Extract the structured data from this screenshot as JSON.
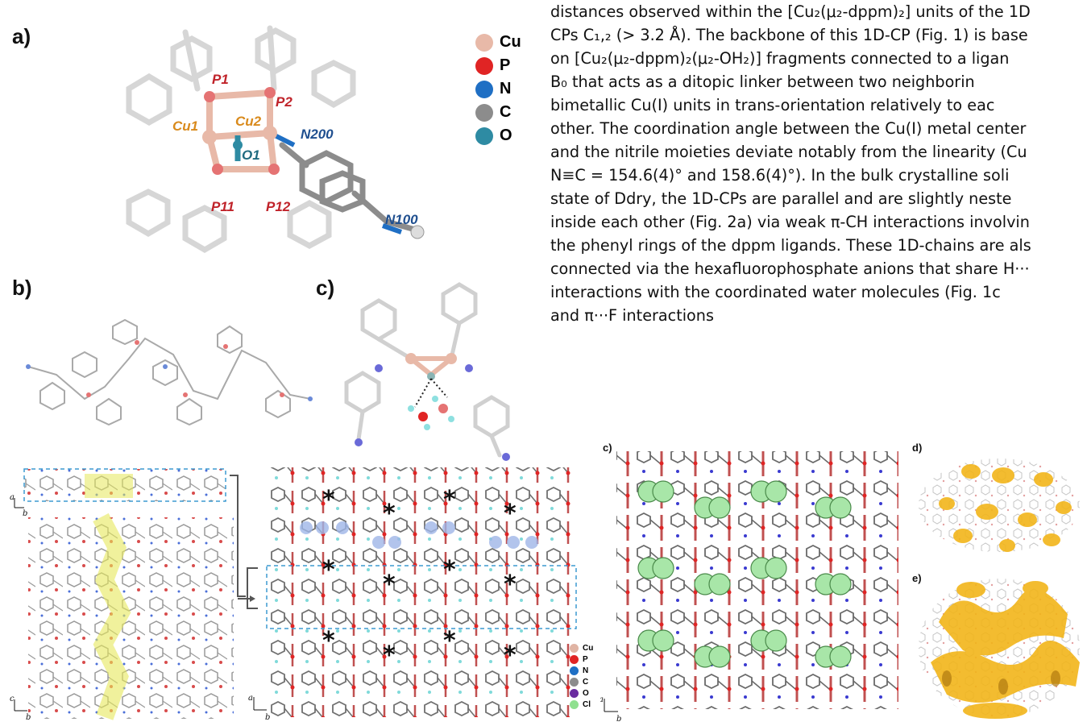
{
  "panel_labels": {
    "top_a": "a)",
    "top_b": "b)",
    "top_c": "c)",
    "bottom_c": "c)",
    "bottom_d": "d)",
    "bottom_e": "e)"
  },
  "paragraph_lines": [
    "distances observed within the [Cu₂(μ₂-dppm)₂] units of the 1D",
    "CPs C₁,₂ (> 3.2 Å). The backbone of this 1D-CP (Fig. 1) is base",
    "on [Cu₂(μ₂-dppm)₂(μ₂-OH₂)] fragments connected to a ligan",
    "B₀ that acts as a ditopic linker between two neighborin",
    "bimetallic Cu(I) units in trans-orientation relatively to eac",
    "other. The coordination angle between the Cu(I) metal center",
    "and the nitrile moieties deviate notably from the linearity (Cu",
    "N≡C = 154.6(4)° and 158.6(4)°). In the bulk crystalline soli",
    "state of Ddry, the 1D-CPs are parallel and are slightly neste",
    "inside each other (Fig. 2a) via weak π-CH interactions involvin",
    "the phenyl rings of the dppm ligands. These 1D-chains are als",
    "connected via the hexafluorophosphate anions that share H···",
    "interactions with the coordinated water molecules (Fig. 1c",
    "and π···F interactions"
  ],
  "atom_labels": {
    "p1": "P1",
    "p2": "P2",
    "cu1": "Cu1",
    "cu2": "Cu2",
    "o1": "O1",
    "n200": "N200",
    "p11": "P11",
    "p12": "P12",
    "n100": "N100"
  },
  "legend_top": [
    {
      "label": "Cu",
      "color": "#e8b9a8"
    },
    {
      "label": "P",
      "color": "#e02424"
    },
    {
      "label": "N",
      "color": "#1f6fc4"
    },
    {
      "label": "C",
      "color": "#8c8c8c"
    },
    {
      "label": "O",
      "color": "#2e8ba3"
    }
  ],
  "legend_bottom": [
    {
      "label": "Cu",
      "color": "#e0b4a4"
    },
    {
      "label": "P",
      "color": "#e02424"
    },
    {
      "label": "N",
      "color": "#1f6fc4"
    },
    {
      "label": "C",
      "color": "#8c8c8c"
    },
    {
      "label": "O",
      "color": "#6a2ca0"
    },
    {
      "label": "Cl",
      "color": "#8fe08f"
    }
  ],
  "axis_labels": {
    "left_top_a": "a",
    "left_top_b": "b",
    "left_bot_c": "c",
    "left_bot_b": "b",
    "mid_a": "a",
    "mid_b": "b",
    "right_a": "a",
    "right_b": "b"
  },
  "stars": "*",
  "colors": {
    "cu": "#e8b9a8",
    "p": "#e02424",
    "n": "#1f6fc4",
    "c": "#8c8c8c",
    "o": "#2e8ba3",
    "cl": "#8fe08f",
    "dashed_box": "#3d9ad1",
    "gold": "#f2b51a",
    "yellow": "#e6e85a"
  }
}
